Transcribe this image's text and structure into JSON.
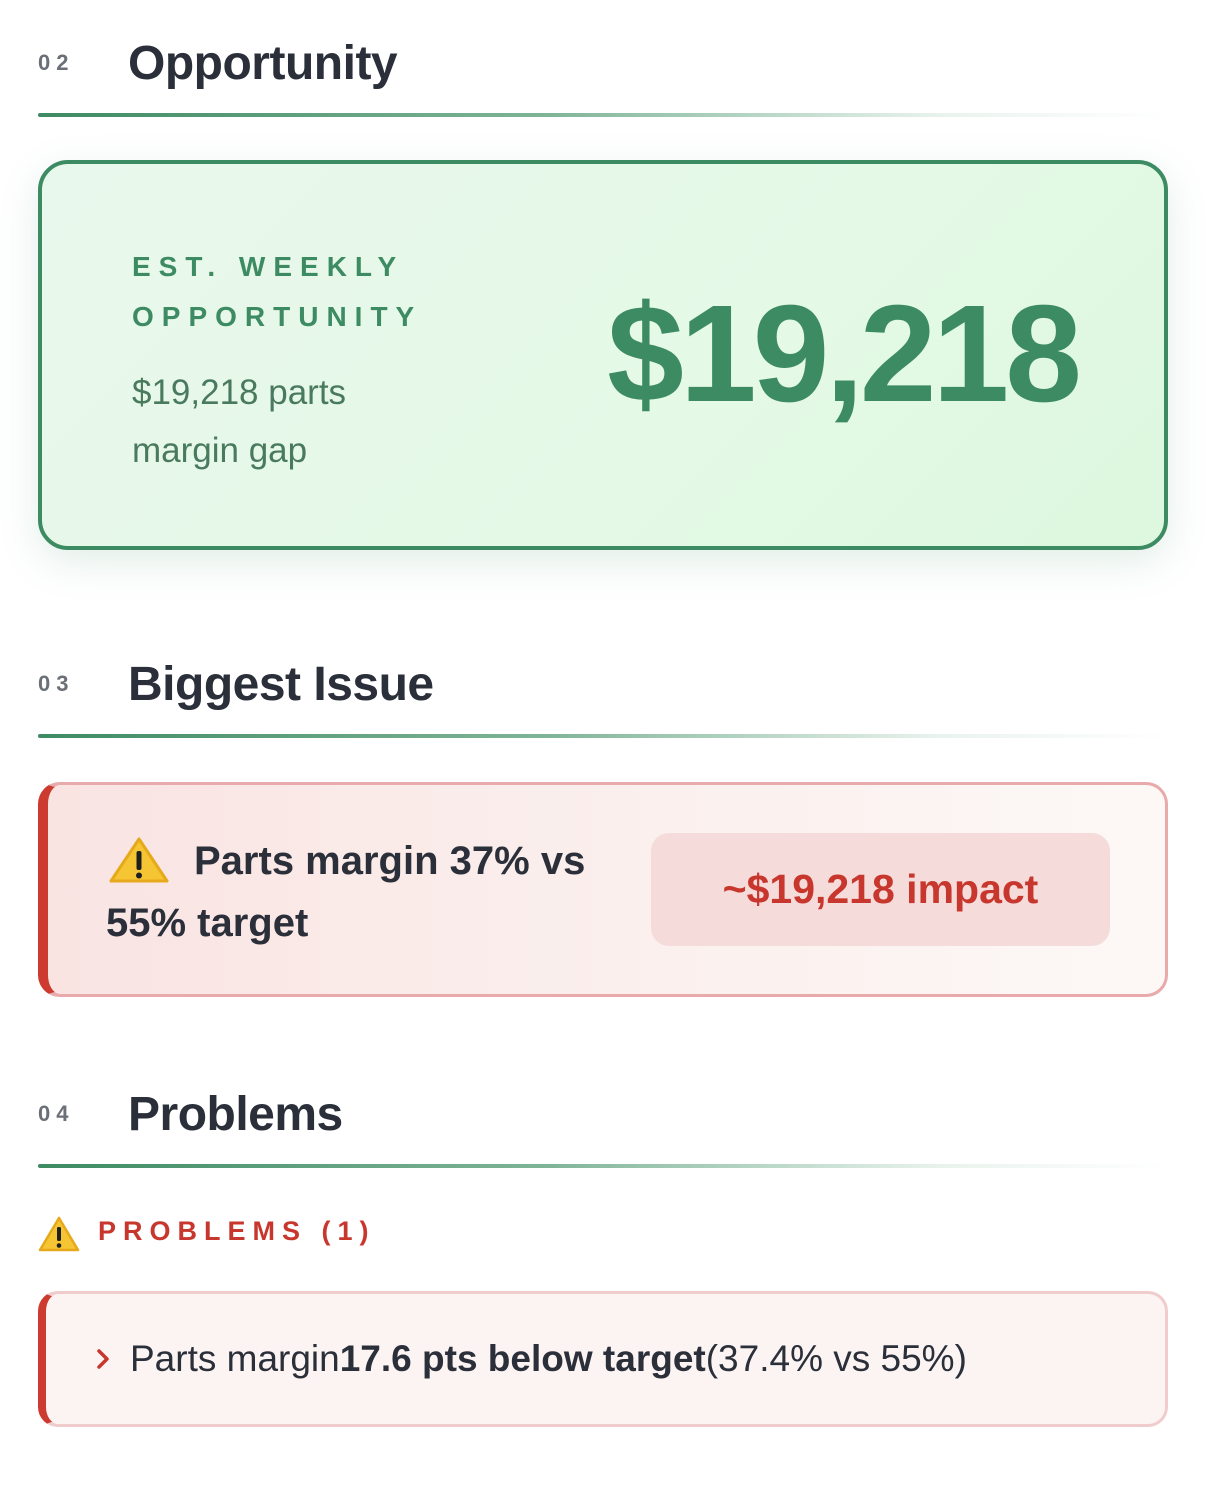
{
  "sections": [
    {
      "number": "02",
      "title": "Opportunity"
    },
    {
      "number": "03",
      "title": "Biggest Issue"
    },
    {
      "number": "04",
      "title": "Problems"
    }
  ],
  "opportunity": {
    "label": "EST. WEEKLY OPPORTUNITY",
    "description": "$19,218 parts margin gap",
    "amount": "$19,218"
  },
  "issue": {
    "text": "Parts margin 37% vs 55% target",
    "impact": "~$19,218 impact"
  },
  "problems": {
    "heading": "PROBLEMS (1)",
    "items": [
      {
        "prefix": "Parts margin",
        "emphasis": "17.6 pts below target",
        "suffix": "(37.4% vs 55%)"
      }
    ]
  }
}
